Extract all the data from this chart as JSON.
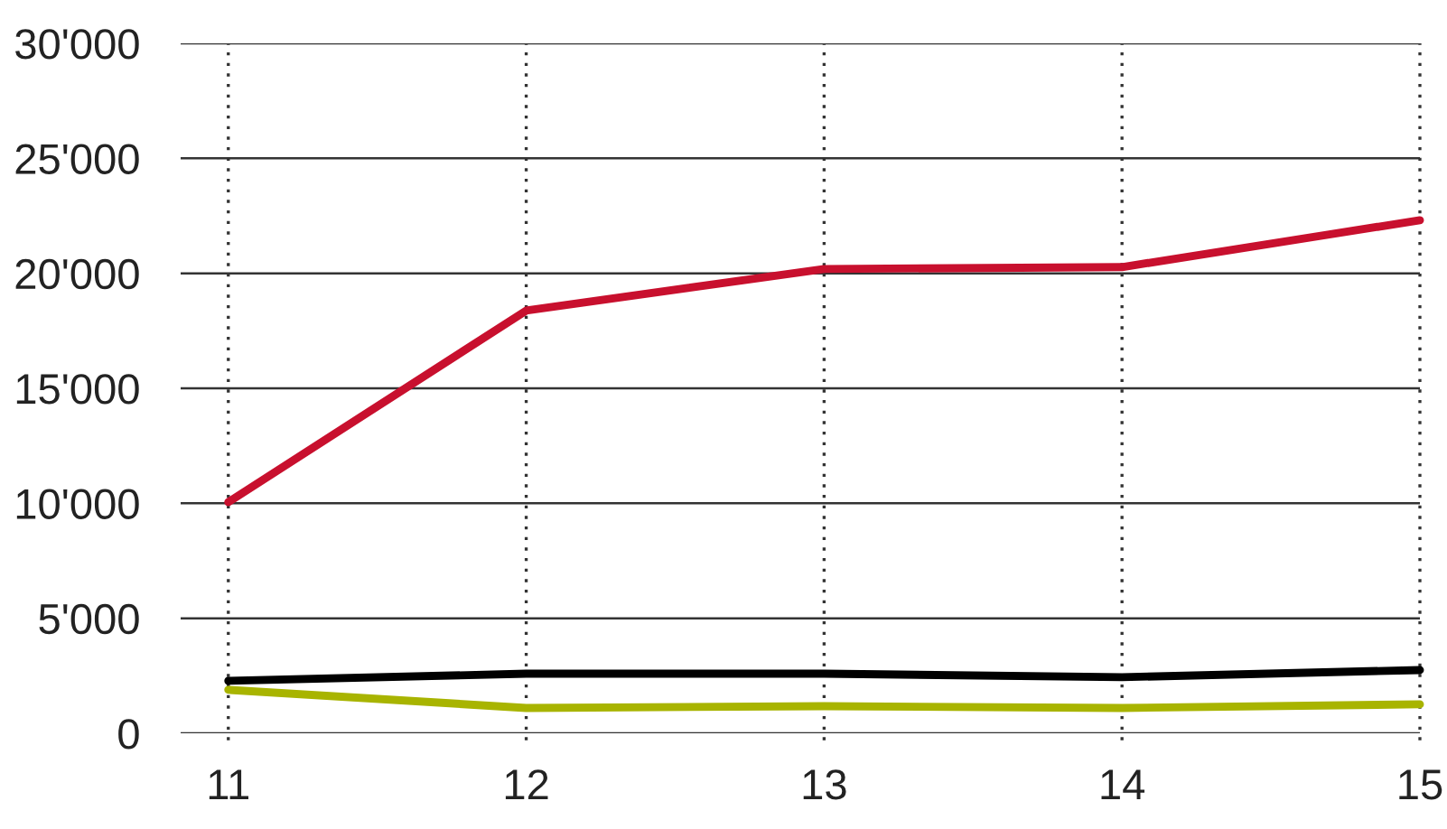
{
  "chart_data": {
    "type": "line",
    "categories": [
      "11",
      "12",
      "13",
      "14",
      "15"
    ],
    "series": [
      {
        "color": "#c8102e",
        "values": [
          10050,
          18380,
          20190,
          20270,
          22310
        ]
      },
      {
        "color": "#000000",
        "values": [
          2280,
          2590,
          2590,
          2440,
          2750
        ]
      },
      {
        "color": "#a8b400",
        "values": [
          1890,
          1100,
          1180,
          1100,
          1260
        ]
      }
    ],
    "ylim": [
      0,
      30000
    ],
    "yticks": [
      {
        "value": 0,
        "label": "0"
      },
      {
        "value": 5000,
        "label": "5'000"
      },
      {
        "value": 10000,
        "label": "10'000"
      },
      {
        "value": 15000,
        "label": "15'000"
      },
      {
        "value": 20000,
        "label": "20'000"
      },
      {
        "value": 25000,
        "label": "25'000"
      },
      {
        "value": 30000,
        "label": "30'000"
      }
    ],
    "grid": true,
    "marker": "none",
    "line_style": "solid",
    "legend": false
  }
}
